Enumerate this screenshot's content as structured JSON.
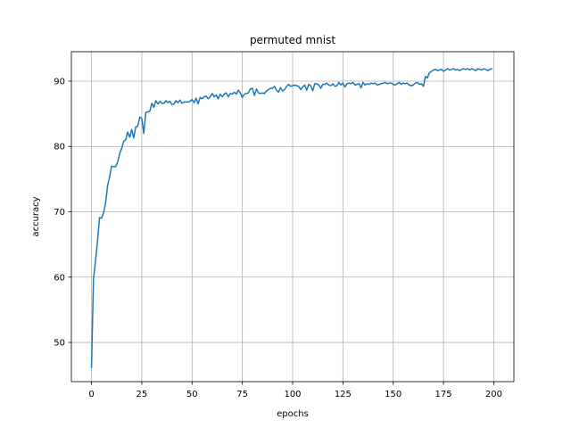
{
  "chart_data": {
    "type": "line",
    "title": "permuted mnist",
    "xlabel": "epochs",
    "ylabel": "accuracy",
    "xlim": [
      -10,
      210
    ],
    "ylim": [
      44,
      94.5
    ],
    "xticks": [
      0,
      25,
      50,
      75,
      100,
      125,
      150,
      175,
      200
    ],
    "yticks": [
      50,
      60,
      70,
      80,
      90
    ],
    "grid": true,
    "line_color": "#1f77b4",
    "series": [
      {
        "values": [
          46.2,
          59.7,
          62.5,
          65.5,
          69.1,
          69.0,
          69.8,
          71.3,
          74.0,
          75.3,
          77.0,
          76.9,
          76.9,
          77.6,
          78.9,
          79.7,
          80.8,
          81.0,
          82.2,
          81.4,
          82.6,
          81.3,
          83.0,
          83.1,
          84.5,
          84.3,
          82.0,
          85.2,
          85.3,
          85.4,
          86.6,
          86.0,
          87.0,
          86.5,
          86.9,
          86.6,
          86.6,
          87.0,
          86.7,
          86.9,
          86.4,
          86.5,
          87.0,
          86.7,
          87.1,
          86.6,
          86.8,
          86.8,
          86.8,
          86.9,
          87.2,
          86.7,
          87.4,
          86.5,
          87.5,
          87.3,
          87.6,
          87.7,
          87.3,
          87.6,
          88.1,
          87.6,
          87.9,
          87.3,
          88.0,
          87.6,
          88.0,
          88.2,
          87.6,
          88.1,
          88.0,
          88.3,
          88.0,
          88.6,
          88.2,
          87.5,
          88.0,
          88.1,
          88.2,
          88.8,
          88.9,
          87.8,
          88.8,
          88.2,
          88.1,
          88.2,
          88.1,
          88.5,
          88.7,
          88.9,
          88.9,
          89.2,
          88.6,
          88.3,
          89.0,
          88.5,
          88.7,
          89.2,
          89.5,
          89.2,
          89.3,
          89.4,
          89.3,
          89.2,
          88.7,
          89.1,
          89.4,
          88.6,
          89.5,
          89.3,
          88.5,
          89.6,
          89.6,
          89.4,
          88.9,
          89.5,
          89.5,
          89.7,
          89.4,
          89.3,
          89.6,
          89.2,
          89.3,
          89.8,
          89.4,
          89.7,
          89.1,
          89.6,
          89.7,
          89.6,
          89.8,
          89.4,
          89.5,
          89.6,
          89.0,
          89.8,
          89.4,
          89.6,
          89.5,
          89.7,
          89.6,
          89.7,
          89.4,
          89.5,
          89.6,
          89.7,
          89.8,
          89.6,
          89.7,
          89.7,
          89.5,
          89.4,
          89.6,
          89.8,
          89.5,
          89.7,
          89.6,
          89.7,
          89.4,
          89.3,
          89.4,
          89.7,
          89.8,
          89.5,
          89.6,
          89.2,
          90.7,
          90.5,
          91.3,
          91.5,
          91.7,
          91.8,
          91.6,
          91.7,
          91.8,
          91.5,
          91.7,
          91.9,
          91.7,
          91.8,
          91.9,
          91.7,
          91.8,
          91.6,
          91.8,
          91.9,
          91.8,
          91.9,
          91.7,
          91.9,
          91.8,
          91.6,
          91.9,
          91.8,
          91.7,
          91.9,
          91.8,
          91.6,
          91.8,
          91.9
        ]
      }
    ]
  }
}
